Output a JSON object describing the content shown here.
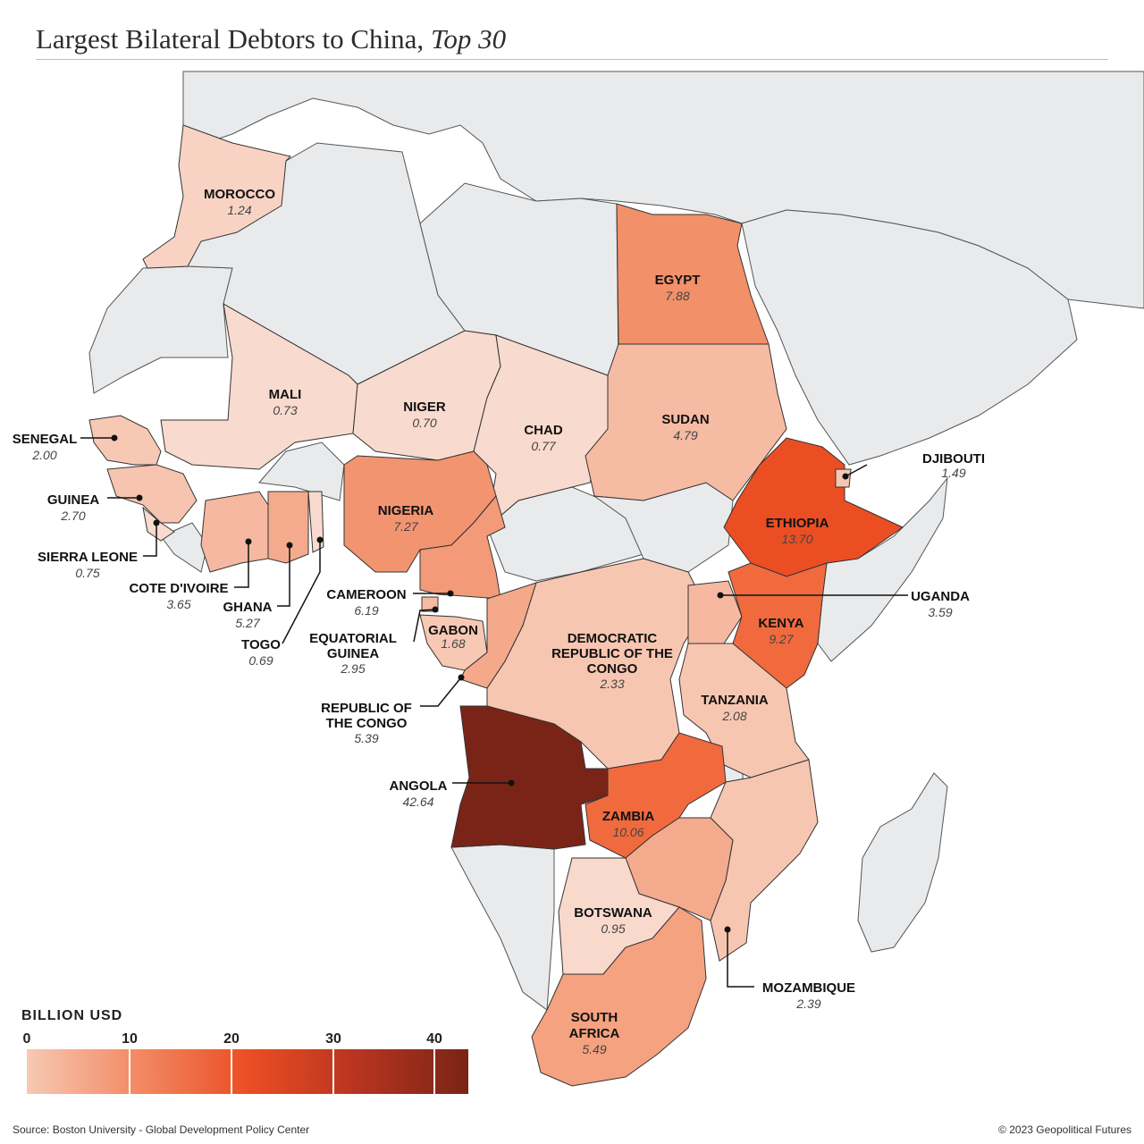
{
  "title": {
    "main": "Largest Bilateral Debtors to China,",
    "sub": "Top 30"
  },
  "legend": {
    "title": "BILLION USD",
    "ticks": [
      "0",
      "10",
      "20",
      "30",
      "40"
    ],
    "min": 0,
    "max": 42.64,
    "colors": [
      "#f7c9b3",
      "#f28a64",
      "#ec4e24",
      "#b73420",
      "#7a2418"
    ]
  },
  "countries": [
    {
      "id": "morocco",
      "name": "MOROCCO",
      "value": "1.24"
    },
    {
      "id": "egypt",
      "name": "EGYPT",
      "value": "7.88"
    },
    {
      "id": "mali",
      "name": "MALI",
      "value": "0.73"
    },
    {
      "id": "niger",
      "name": "NIGER",
      "value": "0.70"
    },
    {
      "id": "chad",
      "name": "CHAD",
      "value": "0.77"
    },
    {
      "id": "sudan",
      "name": "SUDAN",
      "value": "4.79"
    },
    {
      "id": "senegal",
      "name": "SENEGAL",
      "value": "2.00"
    },
    {
      "id": "guinea",
      "name": "GUINEA",
      "value": "2.70"
    },
    {
      "id": "sierra-leone",
      "name": "SIERRA LEONE",
      "value": "0.75"
    },
    {
      "id": "cote-divoire",
      "name": "COTE D'IVOIRE",
      "value": "3.65"
    },
    {
      "id": "ghana",
      "name": "GHANA",
      "value": "5.27"
    },
    {
      "id": "togo",
      "name": "TOGO",
      "value": "0.69"
    },
    {
      "id": "nigeria",
      "name": "NIGERIA",
      "value": "7.27"
    },
    {
      "id": "cameroon",
      "name": "CAMEROON",
      "value": "6.19"
    },
    {
      "id": "equatorial-guinea",
      "name": "EQUATORIAL GUINEA",
      "value": "2.95"
    },
    {
      "id": "gabon",
      "name": "GABON",
      "value": "1.68"
    },
    {
      "id": "republic-of-the-congo",
      "name": "REPUBLIC OF THE CONGO",
      "value": "5.39"
    },
    {
      "id": "drc",
      "name": "DEMOCRATIC REPUBLIC OF THE CONGO",
      "value": "2.33"
    },
    {
      "id": "ethiopia",
      "name": "ETHIOPIA",
      "value": "13.70"
    },
    {
      "id": "djibouti",
      "name": "DJIBOUTI",
      "value": "1.49"
    },
    {
      "id": "uganda",
      "name": "UGANDA",
      "value": "3.59"
    },
    {
      "id": "kenya",
      "name": "KENYA",
      "value": "9.27"
    },
    {
      "id": "tanzania",
      "name": "TANZANIA",
      "value": "2.08"
    },
    {
      "id": "angola",
      "name": "ANGOLA",
      "value": "42.64"
    },
    {
      "id": "zambia",
      "name": "ZAMBIA",
      "value": "10.06"
    },
    {
      "id": "botswana",
      "name": "BOTSWANA",
      "value": "0.95"
    },
    {
      "id": "mozambique",
      "name": "MOZAMBIQUE",
      "value": "2.39"
    },
    {
      "id": "south-africa",
      "name": "SOUTH AFRICA",
      "value": "5.49"
    }
  ],
  "footer": {
    "source": "Source: Boston University - Global Development Policy Center",
    "copyright": "© 2023 Geopolitical Futures"
  }
}
